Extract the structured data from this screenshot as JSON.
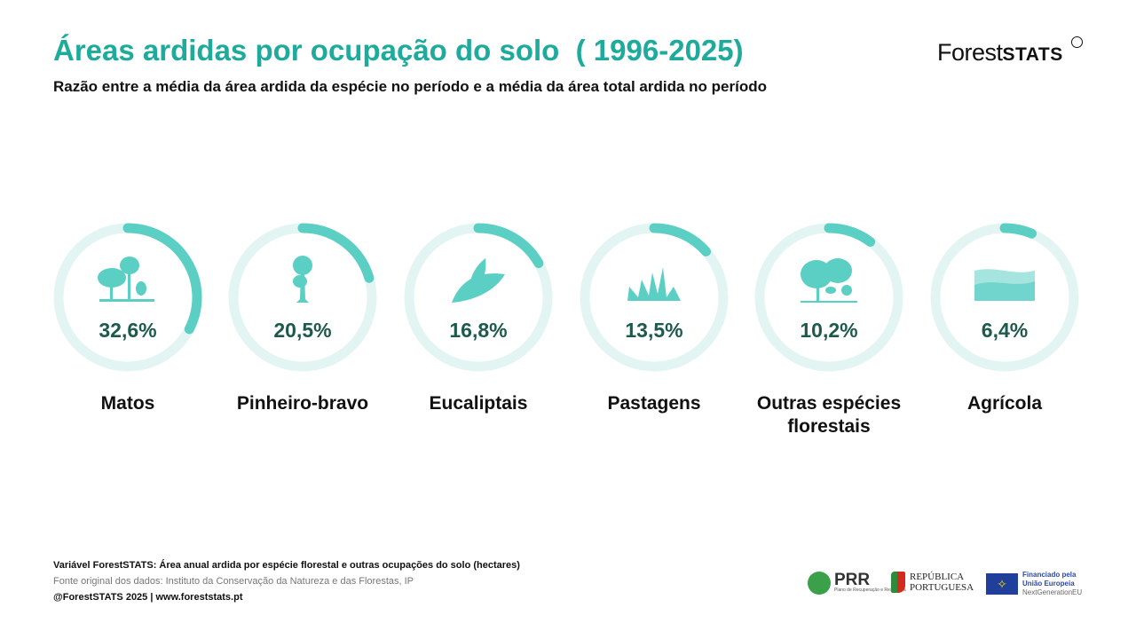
{
  "header": {
    "title": "Áreas ardidas por ocupação do solo  ( 1996-2025)",
    "subtitle": "Razão entre a média da área ardida da espécie no período e a média da área total ardida no período",
    "logo_regular": "Forest",
    "logo_bold": "STATS"
  },
  "colors": {
    "title": "#1eab9c",
    "ring": "#5ccfc4",
    "track": "#e3f5f3",
    "value": "#1d5a4c"
  },
  "chart_data": {
    "type": "radial-progress",
    "title": "Áreas ardidas por ocupação do solo ( 1996-2025)",
    "unit": "%",
    "range": [
      0,
      100
    ],
    "categories": [
      "Matos",
      "Pinheiro-bravo",
      "Eucaliptais",
      "Pastagens",
      "Outras espécies florestais",
      "Agrícola"
    ],
    "values": [
      32.6,
      20.5,
      16.8,
      13.5,
      10.2,
      6.4
    ],
    "labels": [
      "32,6%",
      "20,5%",
      "16,8%",
      "13,5%",
      "10,2%",
      "6,4%"
    ],
    "icons": [
      "shrubland-trees-icon",
      "pine-tree-icon",
      "eucalyptus-leaves-icon",
      "grass-wheat-icon",
      "forest-trees-icon",
      "farmland-fields-icon"
    ]
  },
  "footer": {
    "variable": "Variável ForestSTATS: Área anual ardida por espécie florestal e outras ocupações do solo (hectares)",
    "source": "Fonte original dos dados:  Instituto da Conservação da Natureza e das Florestas, IP",
    "credit": "@ForestSTATS 2025 | www.foreststats.pt"
  },
  "sponsors": {
    "prr": "PRR",
    "prr_sub": "Plano de Recuperação e Resiliência",
    "republica": "REPÚBLICA",
    "portuguesa": "PORTUGUESA",
    "eu1": "Financiado pela",
    "eu2": "União Europeia",
    "eu3": "NextGenerationEU"
  }
}
